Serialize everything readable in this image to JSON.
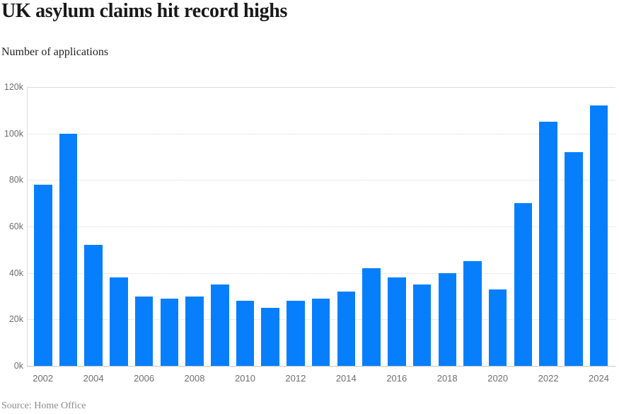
{
  "header": {
    "title": "UK asylum claims hit record highs",
    "subtitle": "Number of applications"
  },
  "footer": {
    "source": "Source: Home Office"
  },
  "colors": {
    "bar": "#077ffc",
    "axis_text": "#6f6f6f",
    "gridline": "#d9d9d9",
    "baseline": "#c5c5c5",
    "title_text": "#191919",
    "source_text": "#8c8c8c"
  },
  "chart_data": {
    "type": "bar",
    "title": "UK asylum claims hit record highs",
    "subtitle": "Number of applications",
    "source": "Source: Home Office",
    "categories": [
      "2002",
      "2003",
      "2004",
      "2005",
      "2006",
      "2007",
      "2008",
      "2009",
      "2010",
      "2011",
      "2012",
      "2013",
      "2014",
      "2015",
      "2016",
      "2017",
      "2018",
      "2019",
      "2020",
      "2021",
      "2022",
      "2023",
      "2024"
    ],
    "values": [
      78000,
      100000,
      52000,
      38000,
      30000,
      29000,
      30000,
      35000,
      28000,
      25000,
      28000,
      29000,
      32000,
      42000,
      38000,
      35000,
      40000,
      45000,
      33000,
      70000,
      105000,
      92000,
      112000
    ],
    "ylim": [
      0,
      120000
    ],
    "yticks": [
      0,
      20000,
      40000,
      60000,
      80000,
      100000,
      120000
    ],
    "ytick_labels": [
      "0k",
      "20k",
      "40k",
      "60k",
      "80k",
      "100k",
      "120k"
    ],
    "xtick_labels": [
      "2002",
      "2004",
      "2006",
      "2008",
      "2010",
      "2012",
      "2014",
      "2016",
      "2018",
      "2020",
      "2022",
      "2024"
    ],
    "grid": "horizontal-dotted",
    "legend": "none",
    "bar_color": "#077ffc"
  }
}
